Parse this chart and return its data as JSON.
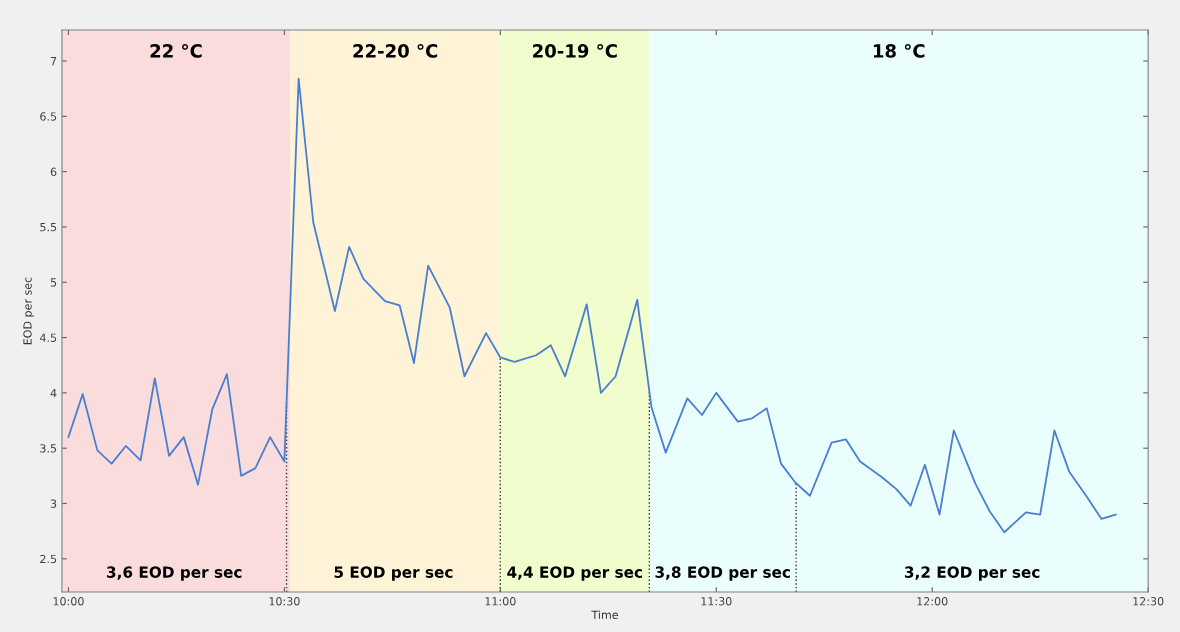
{
  "chart_data": {
    "type": "line",
    "xlabel": "Time",
    "ylabel": "EOD per sec",
    "x": [
      10.0,
      10.033,
      10.067,
      10.1,
      10.133,
      10.167,
      10.2,
      10.233,
      10.267,
      10.3,
      10.333,
      10.367,
      10.4,
      10.433,
      10.467,
      10.5,
      10.533,
      10.567,
      10.617,
      10.65,
      10.683,
      10.733,
      10.767,
      10.8,
      10.833,
      10.883,
      10.917,
      10.967,
      11.0,
      11.033,
      11.083,
      11.117,
      11.15,
      11.2,
      11.233,
      11.267,
      11.317,
      11.35,
      11.383,
      11.433,
      11.467,
      11.5,
      11.55,
      11.583,
      11.617,
      11.65,
      11.683,
      11.717,
      11.767,
      11.8,
      11.833,
      11.883,
      11.917,
      11.95,
      11.983,
      12.017,
      12.05,
      12.1,
      12.133,
      12.167,
      12.217,
      12.25,
      12.283,
      12.317,
      12.358,
      12.392,
      12.425
    ],
    "series": [
      {
        "color": "#4a7fd0",
        "values": [
          3.6,
          3.99,
          3.48,
          3.36,
          3.52,
          3.39,
          4.13,
          3.43,
          3.6,
          3.17,
          3.85,
          4.17,
          3.25,
          3.32,
          3.6,
          3.38,
          6.84,
          5.54,
          4.74,
          5.32,
          5.03,
          4.83,
          4.79,
          4.27,
          5.15,
          4.77,
          4.15,
          4.54,
          4.32,
          4.28,
          4.34,
          4.43,
          4.15,
          4.8,
          4.0,
          4.15,
          4.84,
          3.87,
          3.46,
          3.95,
          3.8,
          4.0,
          3.74,
          3.77,
          3.86,
          3.36,
          3.19,
          3.07,
          3.55,
          3.58,
          3.38,
          3.24,
          3.13,
          2.98,
          3.35,
          2.9,
          3.66,
          3.18,
          2.93,
          2.74,
          2.92,
          2.9,
          3.66,
          3.29,
          3.06,
          2.86,
          2.9
        ]
      }
    ],
    "xlim": [
      9.985,
      12.5
    ],
    "xticks": [
      {
        "value": 10,
        "label": "10:00"
      },
      {
        "value": 10.5,
        "label": "10:30"
      },
      {
        "value": 11,
        "label": "11:00"
      },
      {
        "value": 11.5,
        "label": "11:30"
      },
      {
        "value": 12,
        "label": "12:00"
      },
      {
        "value": 12.5,
        "label": "12:30"
      }
    ],
    "ylim": [
      2.2,
      7.28
    ],
    "yticks": [
      2.5,
      3,
      3.5,
      4,
      4.5,
      5,
      5.5,
      6,
      6.5,
      7
    ],
    "legend": false,
    "marker": "none",
    "line_style": "solid",
    "bands": [
      {
        "axis": "x",
        "from": 9.985,
        "to": 10.513,
        "label": "22 °C",
        "color": "#fadcdc"
      },
      {
        "axis": "x",
        "from": 10.513,
        "to": 11.0,
        "label": "22-20 °C",
        "color": "#fef3d6"
      },
      {
        "axis": "x",
        "from": 11.0,
        "to": 11.345,
        "label": "20-19 °C",
        "color": "#f1fdcd"
      },
      {
        "axis": "x",
        "from": 11.345,
        "to": 12.5,
        "label": "18 °C",
        "color": "#ebfefe"
      }
    ],
    "ref_lines": [
      {
        "axis": "x",
        "value": 10.505,
        "color": "#333333",
        "line_style": "dotted"
      },
      {
        "axis": "x",
        "value": 11.0,
        "color": "#333333",
        "line_style": "dotted"
      },
      {
        "axis": "x",
        "value": 11.345,
        "color": "#333333",
        "line_style": "dotted"
      },
      {
        "axis": "x",
        "value": 11.685,
        "color": "#333333",
        "line_style": "dotted"
      }
    ],
    "annotations": [
      "3,6 EOD per sec",
      "5 EOD per sec",
      "4,4 EOD per sec",
      "3,8 EOD per sec",
      "3,2 EOD per sec"
    ]
  }
}
